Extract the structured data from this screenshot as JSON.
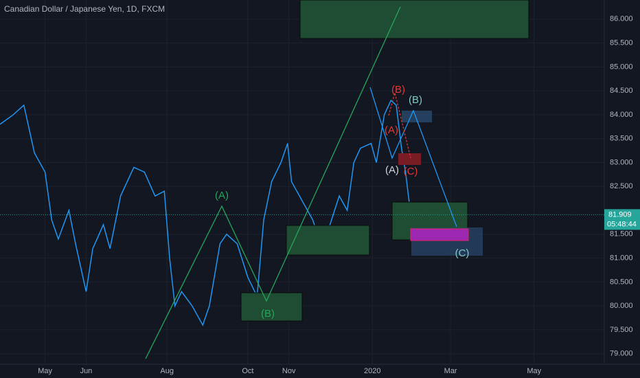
{
  "chart_data": {
    "type": "line",
    "title": "Canadian Dollar / Japanese Yen, 1D, FXCM",
    "series": [
      {
        "name": "CADJPY",
        "color": "#2196f3",
        "x": [
          0,
          10,
          18,
          26,
          34,
          39,
          44,
          52,
          57,
          65,
          70,
          78,
          83,
          91,
          101,
          109,
          117,
          124,
          128,
          132,
          137,
          145,
          153,
          158,
          166,
          171,
          179,
          187,
          194,
          199,
          205,
          212,
          217,
          220,
          228,
          236,
          241,
          249,
          256,
          262,
          267,
          272,
          280,
          284,
          290,
          295,
          299,
          303,
          306,
          310
        ],
        "values": [
          83.8,
          84.0,
          84.2,
          83.2,
          82.8,
          81.8,
          81.4,
          82.0,
          81.3,
          80.3,
          81.2,
          81.7,
          81.2,
          82.3,
          82.9,
          82.8,
          82.3,
          82.4,
          81.0,
          80.0,
          80.3,
          80.0,
          79.6,
          80.0,
          81.3,
          81.5,
          81.3,
          80.6,
          80.2,
          81.8,
          82.6,
          83.0,
          83.4,
          82.6,
          82.2,
          81.8,
          81.4,
          81.7,
          82.3,
          82.0,
          83.0,
          83.3,
          83.4,
          83.0,
          84.0,
          84.3,
          84.2,
          83.3,
          82.8,
          81.9
        ]
      }
    ],
    "xlim": [
      0,
      456
    ],
    "xticks": [
      {
        "value": 34,
        "label": "May"
      },
      {
        "value": 65,
        "label": "Jun"
      },
      {
        "value": 126,
        "label": "Aug"
      },
      {
        "value": 187,
        "label": "Oct"
      },
      {
        "value": 218,
        "label": "Nov"
      },
      {
        "value": 281,
        "label": "2020"
      },
      {
        "value": 340,
        "label": "Mar"
      },
      {
        "value": 403,
        "label": "May"
      }
    ],
    "ylim": [
      78.78,
      86.4
    ],
    "yticks": [
      {
        "value": 79,
        "label": "79.000"
      },
      {
        "value": 79.5,
        "label": "79.500"
      },
      {
        "value": 80,
        "label": "80.000"
      },
      {
        "value": 80.5,
        "label": "80.500"
      },
      {
        "value": 81,
        "label": "81.000"
      },
      {
        "value": 81.5,
        "label": "81.500"
      },
      {
        "value": 82.5,
        "label": "82.500"
      },
      {
        "value": 83,
        "label": "83.000"
      },
      {
        "value": 83.5,
        "label": "83.500"
      },
      {
        "value": 84,
        "label": "84.000"
      },
      {
        "value": 84.5,
        "label": "84.500"
      },
      {
        "value": 85,
        "label": "85.000"
      },
      {
        "value": 85.5,
        "label": "85.500"
      },
      {
        "value": 86,
        "label": "86.000"
      }
    ],
    "last_price": 81.909,
    "countdown": "05:48:44",
    "annotations": [
      "(A)",
      "(B)",
      "(B)",
      "(A)",
      "(C)",
      "(B)",
      "(A)",
      "(C)"
    ]
  }
}
